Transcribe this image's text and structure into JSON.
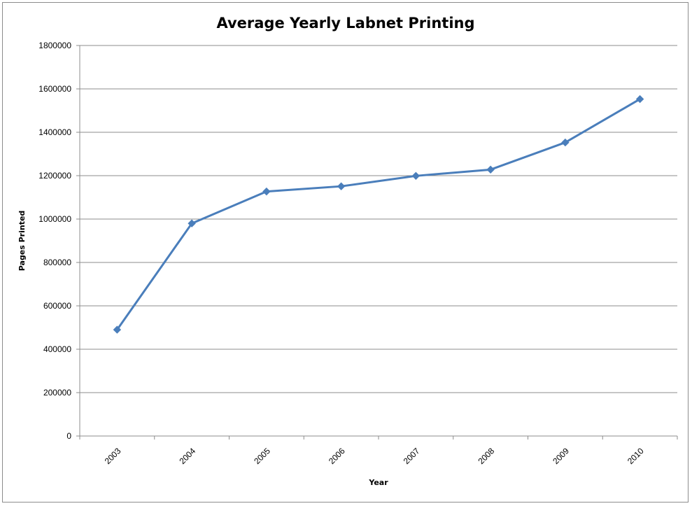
{
  "chart_data": {
    "type": "line",
    "title": "Average Yearly Labnet Printing",
    "xlabel": "Year",
    "ylabel": "Pages Printed",
    "categories": [
      "2003",
      "2004",
      "2005",
      "2006",
      "2007",
      "2008",
      "2009",
      "2010"
    ],
    "series": [
      {
        "values": [
          490000,
          980000,
          1127000,
          1151000,
          1199000,
          1228000,
          1353000,
          1553000
        ]
      }
    ],
    "ylim": [
      0,
      1800000
    ],
    "yticks": [
      "0",
      "200000",
      "400000",
      "600000",
      "800000",
      "1000000",
      "1200000",
      "1400000",
      "1600000",
      "1800000"
    ],
    "grid": true,
    "legend": "none",
    "line_color": "#4a7ebb",
    "marker": "diamond"
  }
}
